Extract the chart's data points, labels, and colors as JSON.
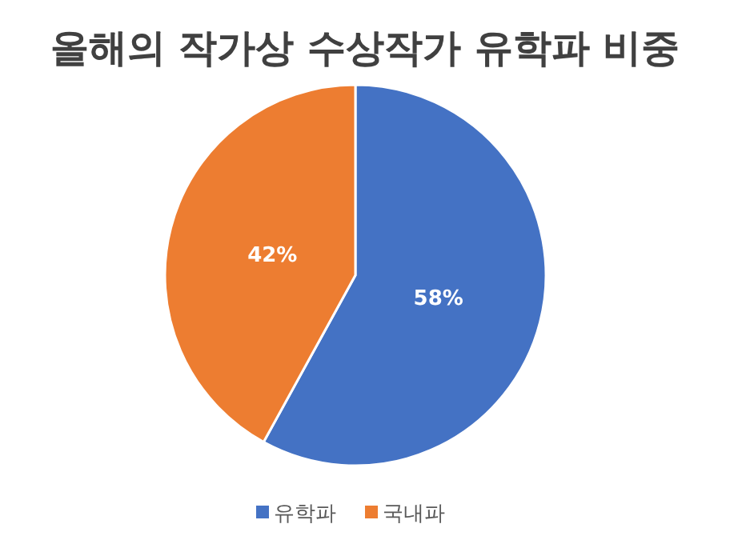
{
  "chart_data": {
    "type": "pie",
    "title": "올해의 작가상 수상작가 유학파 비중",
    "categories": [
      "유학파",
      "국내파"
    ],
    "values": [
      58,
      42
    ],
    "colors": [
      "#4472c4",
      "#ed7d31"
    ],
    "value_labels": [
      "58%",
      "42%"
    ],
    "legend": "bottom"
  }
}
